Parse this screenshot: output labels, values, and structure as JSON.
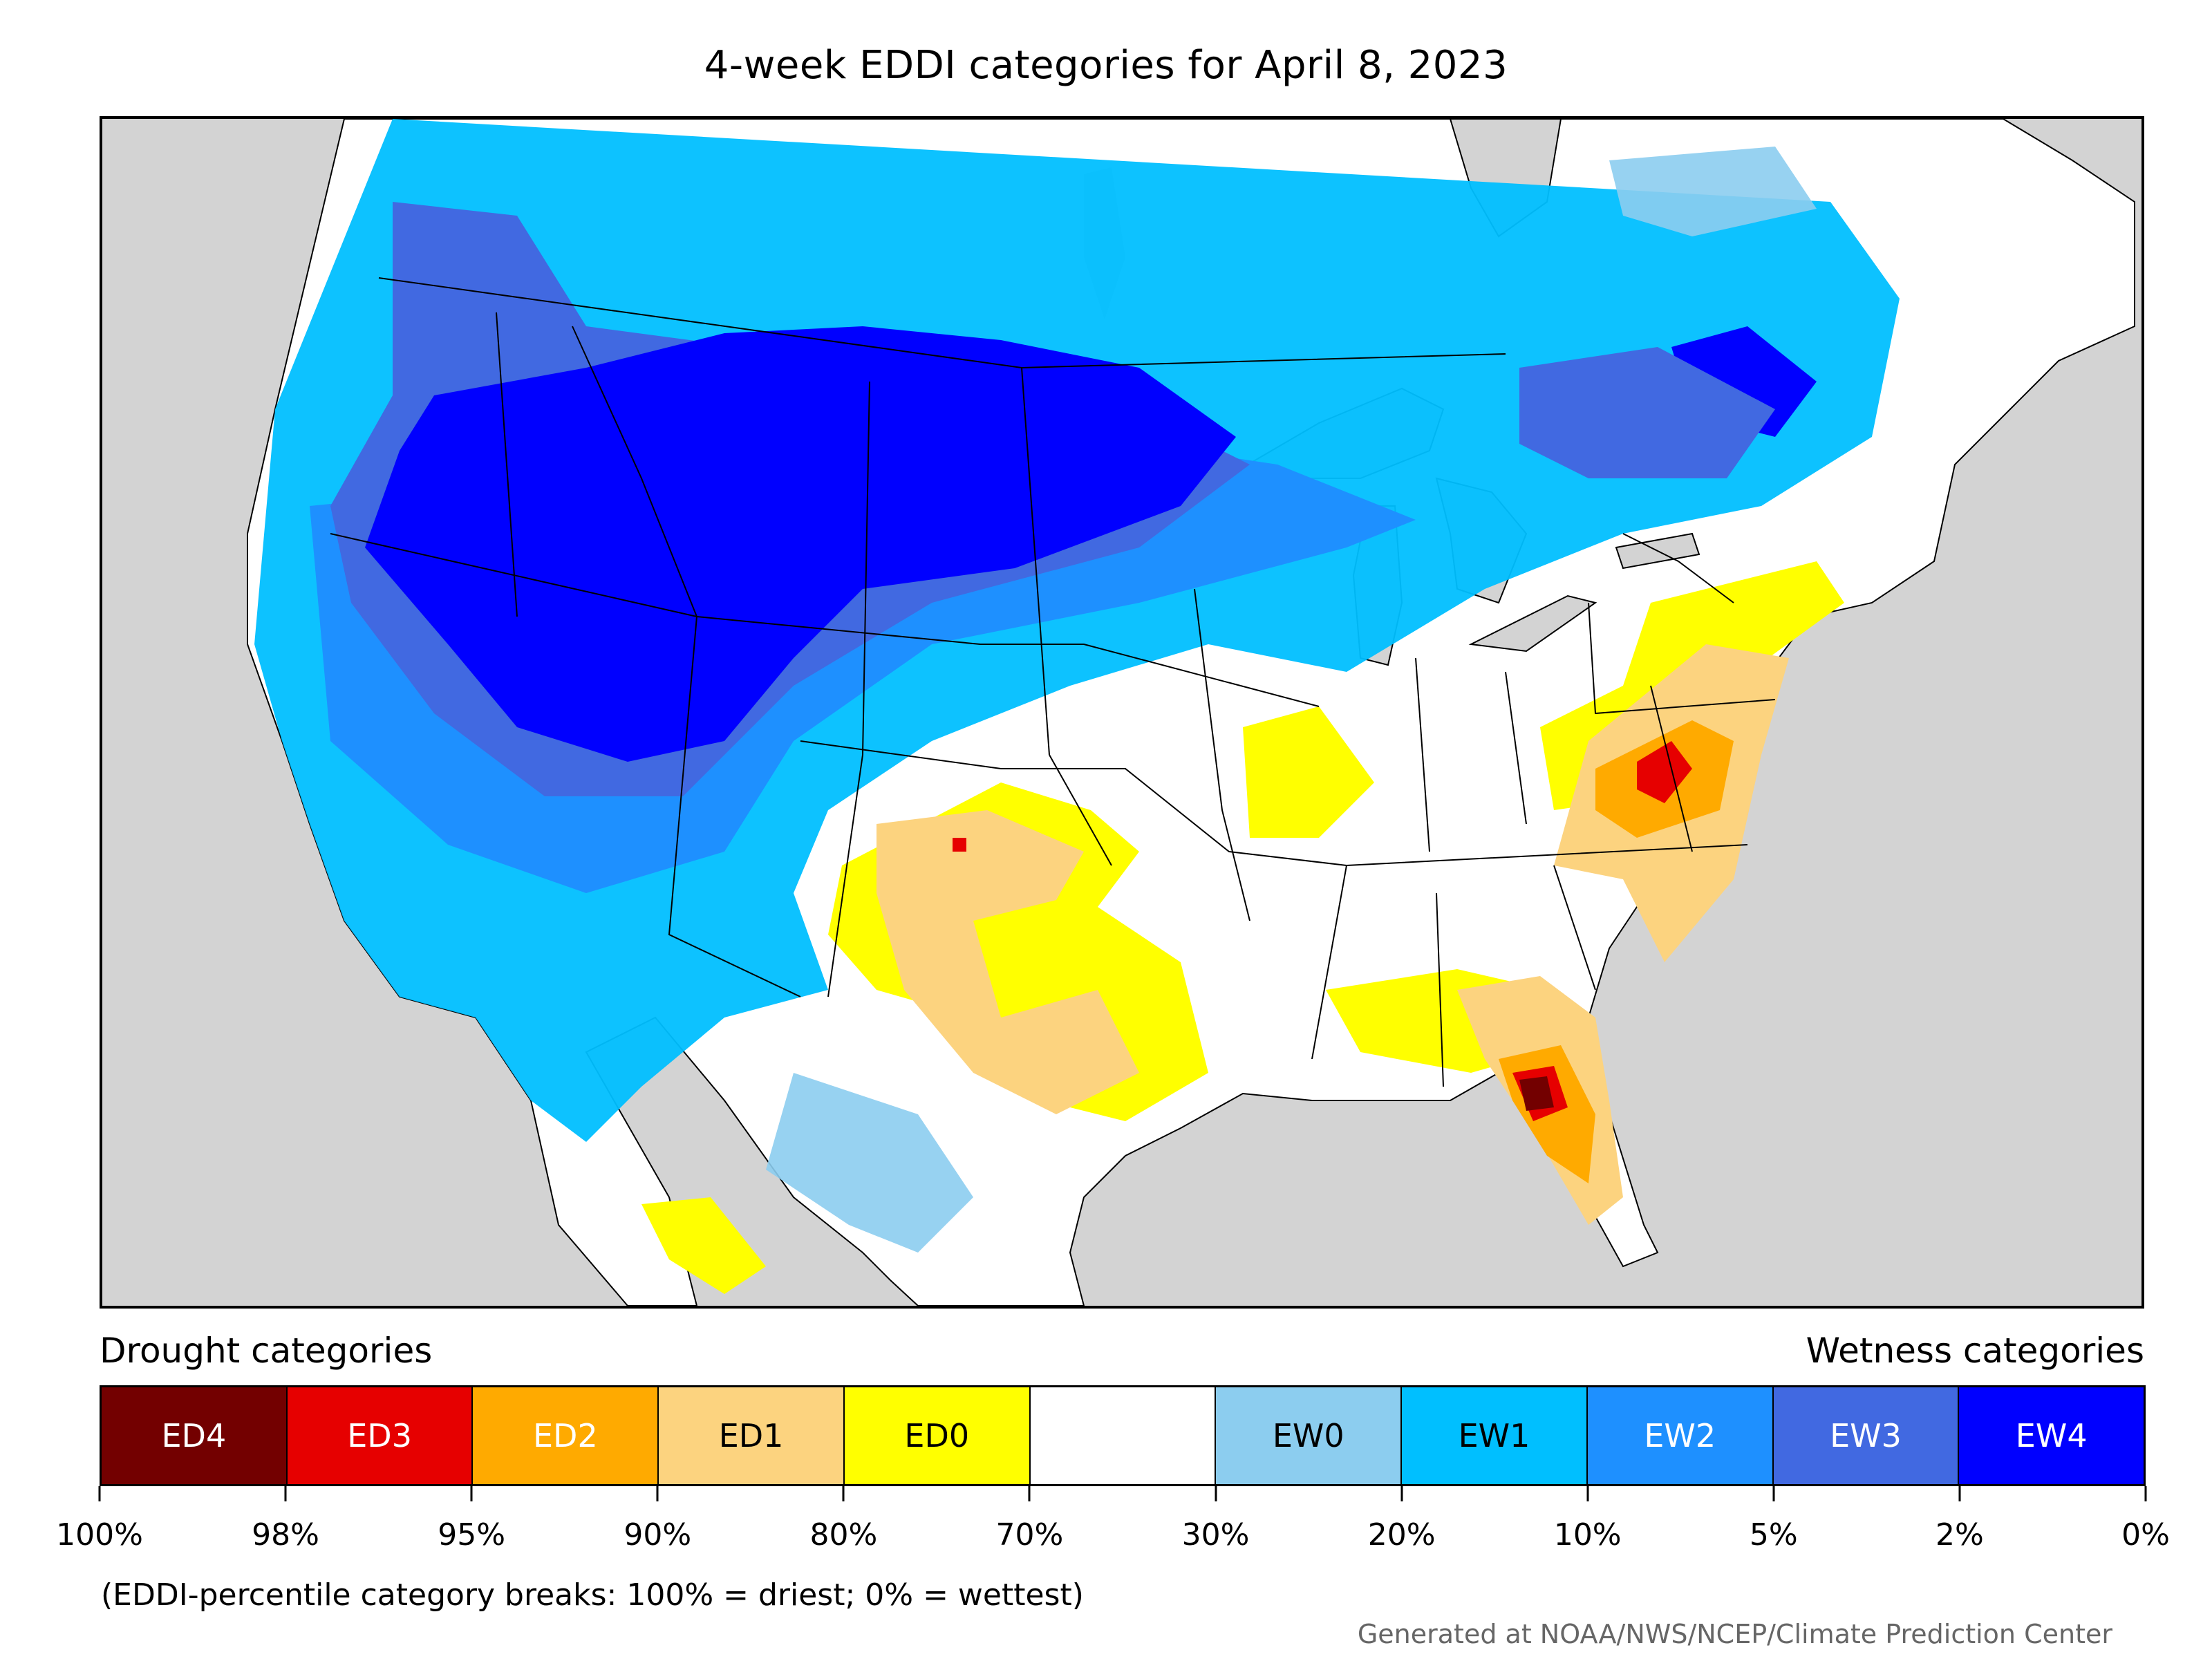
{
  "title": "4-week EDDI categories for April 8, 2023",
  "legend": {
    "drought_title": "Drought categories",
    "wetness_title": "Wetness categories",
    "categories": [
      {
        "label": "ED4",
        "color": "#730000",
        "text_color": "#ffffff"
      },
      {
        "label": "ED3",
        "color": "#e60000",
        "text_color": "#ffffff"
      },
      {
        "label": "ED2",
        "color": "#ffaa00",
        "text_color": "#ffffff"
      },
      {
        "label": "ED1",
        "color": "#fcd37f",
        "text_color": "#000000"
      },
      {
        "label": "ED0",
        "color": "#ffff00",
        "text_color": "#000000"
      },
      {
        "label": "",
        "color": "#ffffff",
        "text_color": "#000000"
      },
      {
        "label": "EW0",
        "color": "#8ccdef",
        "text_color": "#000000"
      },
      {
        "label": "EW1",
        "color": "#00bfff",
        "text_color": "#000000"
      },
      {
        "label": "EW2",
        "color": "#1e90ff",
        "text_color": "#ffffff"
      },
      {
        "label": "EW3",
        "color": "#4169e1",
        "text_color": "#ffffff"
      },
      {
        "label": "EW4",
        "color": "#0000ff",
        "text_color": "#ffffff"
      }
    ],
    "tick_labels": [
      "100%",
      "98%",
      "95%",
      "90%",
      "80%",
      "70%",
      "30%",
      "20%",
      "10%",
      "5%",
      "2%",
      "0%"
    ]
  },
  "footnote": "(EDDI-percentile category breaks: 100% = driest; 0% = wettest)",
  "credit": "Generated at NOAA/NWS/NCEP/Climate Prediction Center",
  "map": {
    "background_color": "#d3d3d3",
    "land_color": "#ffffff",
    "border_color": "#000000"
  }
}
